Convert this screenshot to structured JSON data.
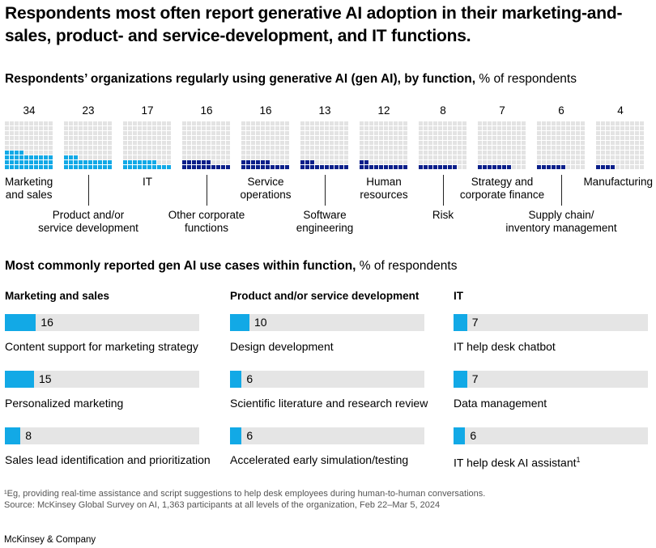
{
  "header": {
    "title": "Respondents most often report generative AI adoption in their marketing-and-sales, product- and service-development, and IT functions."
  },
  "adoption": {
    "title_bold": "Respondents’ organizations regularly using generative AI (gen AI), by function,",
    "title_unit": " % of respondents"
  },
  "use_cases": {
    "title_bold": "Most commonly reported gen AI use cases within function,",
    "title_unit": " % of respondents"
  },
  "chart_data": [
    {
      "type": "waffle",
      "title": "Respondents’ organizations regularly using generative AI (gen AI), by function, % of respondents",
      "categories": [
        "Marketing and sales",
        "Product and/or service development",
        "IT",
        "Other corporate functions",
        "Service operations",
        "Software engineering",
        "Human resources",
        "Risk",
        "Strategy and corporate finance",
        "Supply chain/ inventory management",
        "Manufacturing"
      ],
      "values": [
        34,
        23,
        17,
        16,
        16,
        13,
        12,
        8,
        7,
        6,
        4
      ],
      "ylim": [
        0,
        100
      ]
    },
    {
      "type": "bar",
      "title": "Marketing and sales",
      "categories": [
        "Content support for marketing strategy",
        "Personalized marketing",
        "Sales lead identification and prioritization"
      ],
      "values": [
        16,
        15,
        8
      ]
    },
    {
      "type": "bar",
      "title": "Product and/or service development",
      "categories": [
        "Design development",
        "Scientific literature and research review",
        "Accelerated early simulation/testing"
      ],
      "values": [
        10,
        6,
        6
      ]
    },
    {
      "type": "bar",
      "title": "IT",
      "categories": [
        "IT help desk chatbot",
        "Data management",
        "IT help desk AI assistant"
      ],
      "values": [
        7,
        7,
        6
      ]
    }
  ],
  "labels": {
    "function_labels": [
      "Marketing\nand sales",
      "Product and/or\nservice development",
      "IT",
      "Other corporate\nfunctions",
      "Service\noperations",
      "Software\nengineering",
      "Human\nresources",
      "Risk",
      "Strategy and\ncorporate finance",
      "Supply chain/\ninventory management",
      "Manufacturing"
    ],
    "it_assistant_footnote_mark": "1"
  },
  "colors": {
    "light_blue": "#12a9e6",
    "dark_blue": "#0b1f8a",
    "grid_empty": "#e3e3e3",
    "bar_track": "#e5e5e5"
  },
  "footer": {
    "footnote": "¹Eg, providing real-time assistance and script suggestions to help desk employees during human-to-human conversations.",
    "source": "Source: McKinsey Global Survey on AI, 1,363 participants at all levels of the organization, Feb 22–Mar 5, 2024",
    "brand": "McKinsey & Company"
  }
}
